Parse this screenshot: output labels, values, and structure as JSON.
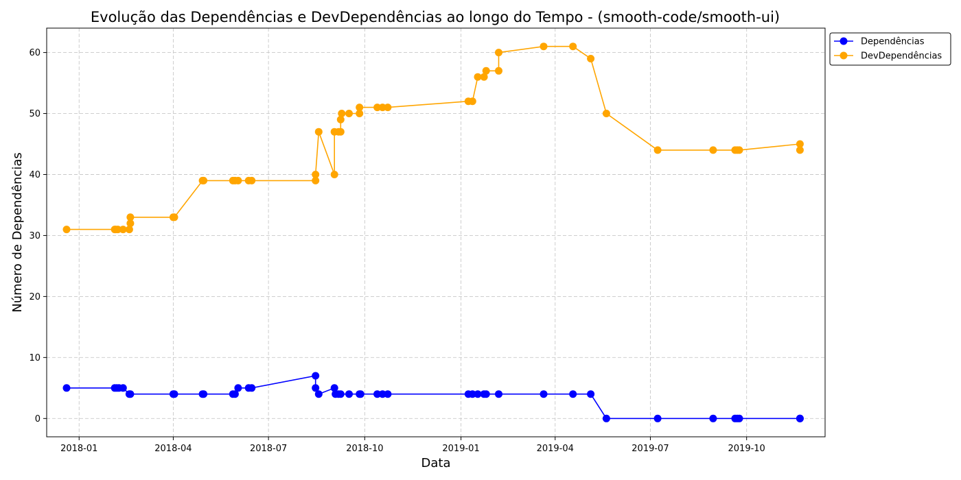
{
  "chart_data": {
    "type": "line",
    "title": "Evolução das Dependências e DevDependências ao longo do Tempo - (smooth-code/smooth-ui)",
    "xlabel": "Data",
    "ylabel": "Número de Dependências",
    "ylim": [
      -3,
      64
    ],
    "xlim": [
      "2017-12-01",
      "2019-12-15"
    ],
    "yticks": [
      0,
      10,
      20,
      30,
      40,
      50,
      60
    ],
    "xticks": [
      "2018-01",
      "2018-04",
      "2018-07",
      "2018-10",
      "2019-01",
      "2019-04",
      "2019-07",
      "2019-10"
    ],
    "grid": true,
    "legend_position": "upper-left-outside",
    "series": [
      {
        "name": "Dependências",
        "color": "#0000ff",
        "points": [
          [
            "2017-12-20",
            5
          ],
          [
            "2018-02-04",
            5
          ],
          [
            "2018-02-06",
            5
          ],
          [
            "2018-02-08",
            5
          ],
          [
            "2018-02-12",
            5
          ],
          [
            "2018-02-18",
            4
          ],
          [
            "2018-02-19",
            4
          ],
          [
            "2018-04-01",
            4
          ],
          [
            "2018-04-02",
            4
          ],
          [
            "2018-04-29",
            4
          ],
          [
            "2018-04-30",
            4
          ],
          [
            "2018-05-28",
            4
          ],
          [
            "2018-05-30",
            4
          ],
          [
            "2018-06-02",
            5
          ],
          [
            "2018-06-12",
            5
          ],
          [
            "2018-06-15",
            5
          ],
          [
            "2018-08-15",
            7
          ],
          [
            "2018-08-15",
            5
          ],
          [
            "2018-08-18",
            4
          ],
          [
            "2018-09-02",
            5
          ],
          [
            "2018-09-03",
            4
          ],
          [
            "2018-09-06",
            4
          ],
          [
            "2018-09-08",
            4
          ],
          [
            "2018-09-16",
            4
          ],
          [
            "2018-09-26",
            4
          ],
          [
            "2018-09-27",
            4
          ],
          [
            "2018-10-13",
            4
          ],
          [
            "2018-10-18",
            4
          ],
          [
            "2018-10-23",
            4
          ],
          [
            "2019-01-08",
            4
          ],
          [
            "2019-01-12",
            4
          ],
          [
            "2019-01-17",
            4
          ],
          [
            "2019-01-23",
            4
          ],
          [
            "2019-01-25",
            4
          ],
          [
            "2019-02-06",
            4
          ],
          [
            "2019-03-21",
            4
          ],
          [
            "2019-04-18",
            4
          ],
          [
            "2019-05-05",
            4
          ],
          [
            "2019-05-20",
            0
          ],
          [
            "2019-07-08",
            0
          ],
          [
            "2019-08-30",
            0
          ],
          [
            "2019-09-20",
            0
          ],
          [
            "2019-09-22",
            0
          ],
          [
            "2019-09-24",
            0
          ],
          [
            "2019-11-21",
            0
          ],
          [
            "2019-11-21",
            0
          ]
        ]
      },
      {
        "name": "DevDependências",
        "color": "#ffa500",
        "points": [
          [
            "2017-12-20",
            31
          ],
          [
            "2018-02-04",
            31
          ],
          [
            "2018-02-05",
            31
          ],
          [
            "2018-02-07",
            31
          ],
          [
            "2018-02-12",
            31
          ],
          [
            "2018-02-18",
            31
          ],
          [
            "2018-02-19",
            32
          ],
          [
            "2018-02-19",
            33
          ],
          [
            "2018-04-01",
            33
          ],
          [
            "2018-04-02",
            33
          ],
          [
            "2018-04-29",
            39
          ],
          [
            "2018-04-30",
            39
          ],
          [
            "2018-05-28",
            39
          ],
          [
            "2018-05-30",
            39
          ],
          [
            "2018-06-02",
            39
          ],
          [
            "2018-06-12",
            39
          ],
          [
            "2018-06-15",
            39
          ],
          [
            "2018-08-15",
            39
          ],
          [
            "2018-08-15",
            40
          ],
          [
            "2018-08-18",
            47
          ],
          [
            "2018-09-02",
            40
          ],
          [
            "2018-09-02",
            47
          ],
          [
            "2018-09-06",
            47
          ],
          [
            "2018-09-08",
            47
          ],
          [
            "2018-09-08",
            49
          ],
          [
            "2018-09-09",
            50
          ],
          [
            "2018-09-16",
            50
          ],
          [
            "2018-09-26",
            50
          ],
          [
            "2018-09-26",
            51
          ],
          [
            "2018-10-13",
            51
          ],
          [
            "2018-10-18",
            51
          ],
          [
            "2018-10-23",
            51
          ],
          [
            "2019-01-08",
            52
          ],
          [
            "2019-01-12",
            52
          ],
          [
            "2019-01-17",
            56
          ],
          [
            "2019-01-23",
            56
          ],
          [
            "2019-01-25",
            57
          ],
          [
            "2019-02-06",
            57
          ],
          [
            "2019-02-06",
            60
          ],
          [
            "2019-03-21",
            61
          ],
          [
            "2019-04-18",
            61
          ],
          [
            "2019-05-05",
            59
          ],
          [
            "2019-05-20",
            50
          ],
          [
            "2019-07-08",
            44
          ],
          [
            "2019-08-30",
            44
          ],
          [
            "2019-09-20",
            44
          ],
          [
            "2019-09-22",
            44
          ],
          [
            "2019-09-24",
            44
          ],
          [
            "2019-11-21",
            45
          ],
          [
            "2019-11-21",
            44
          ]
        ]
      }
    ]
  }
}
